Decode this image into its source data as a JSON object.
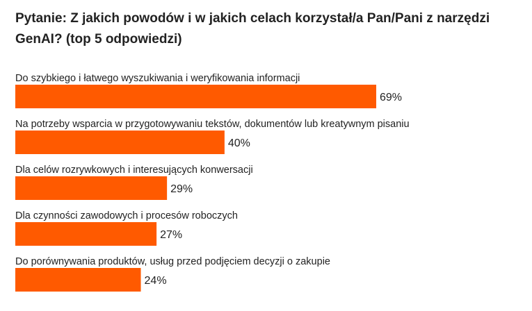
{
  "chart_data": {
    "type": "bar",
    "orientation": "horizontal",
    "title": "Pytanie: Z jakich powodów i w jakich celach korzystał/a Pan/Pani z narzędzi GenAI? (top 5 odpowiedzi)",
    "categories": [
      "Do szybkiego i łatwego wyszukiwania i weryfikowania informacji",
      "Na potrzeby wsparcia w przygotowywaniu tekstów, dokumentów lub kreatywnym pisaniu",
      "Dla celów rozrywkowych i interesujących konwersacji",
      "Dla czynności zawodowych i procesów roboczych",
      "Do porównywania produktów, usług przed podjęciem decyzji o zakupie"
    ],
    "values": [
      69,
      40,
      29,
      27,
      24
    ],
    "value_labels": [
      "69%",
      "40%",
      "29%",
      "27%",
      "24%"
    ],
    "unit": "%",
    "xlim": [
      0,
      100
    ],
    "grid": false,
    "legend": "none",
    "bar_color": "#ff5a00"
  }
}
